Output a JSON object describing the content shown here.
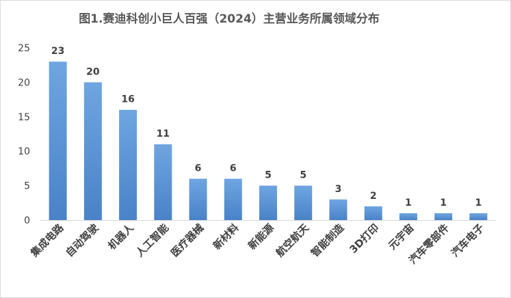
{
  "chart_data": {
    "type": "bar",
    "title": "图1.赛迪科创小巨人百强（2024）主营业务所属领域分布",
    "xlabel": "",
    "ylabel": "",
    "categories": [
      "集成电路",
      "自动驾驶",
      "机器人",
      "人工智能",
      "医疗器械",
      "新材料",
      "新能源",
      "航空航天",
      "智能制造",
      "3D打印",
      "元宇宙",
      "汽车零部件",
      "汽车电子"
    ],
    "values": [
      23,
      20,
      16,
      11,
      6,
      6,
      5,
      5,
      3,
      2,
      1,
      1,
      1
    ],
    "ylim": [
      0,
      25
    ],
    "yticks": [
      0,
      5,
      10,
      15,
      20,
      25
    ],
    "grid": false,
    "legend": "none",
    "colors": {
      "bar_top": "#6fa5e0",
      "bar_bottom": "#4a82c8",
      "text": "#404040",
      "title": "#595959",
      "axis": "#d9d9d9"
    }
  }
}
